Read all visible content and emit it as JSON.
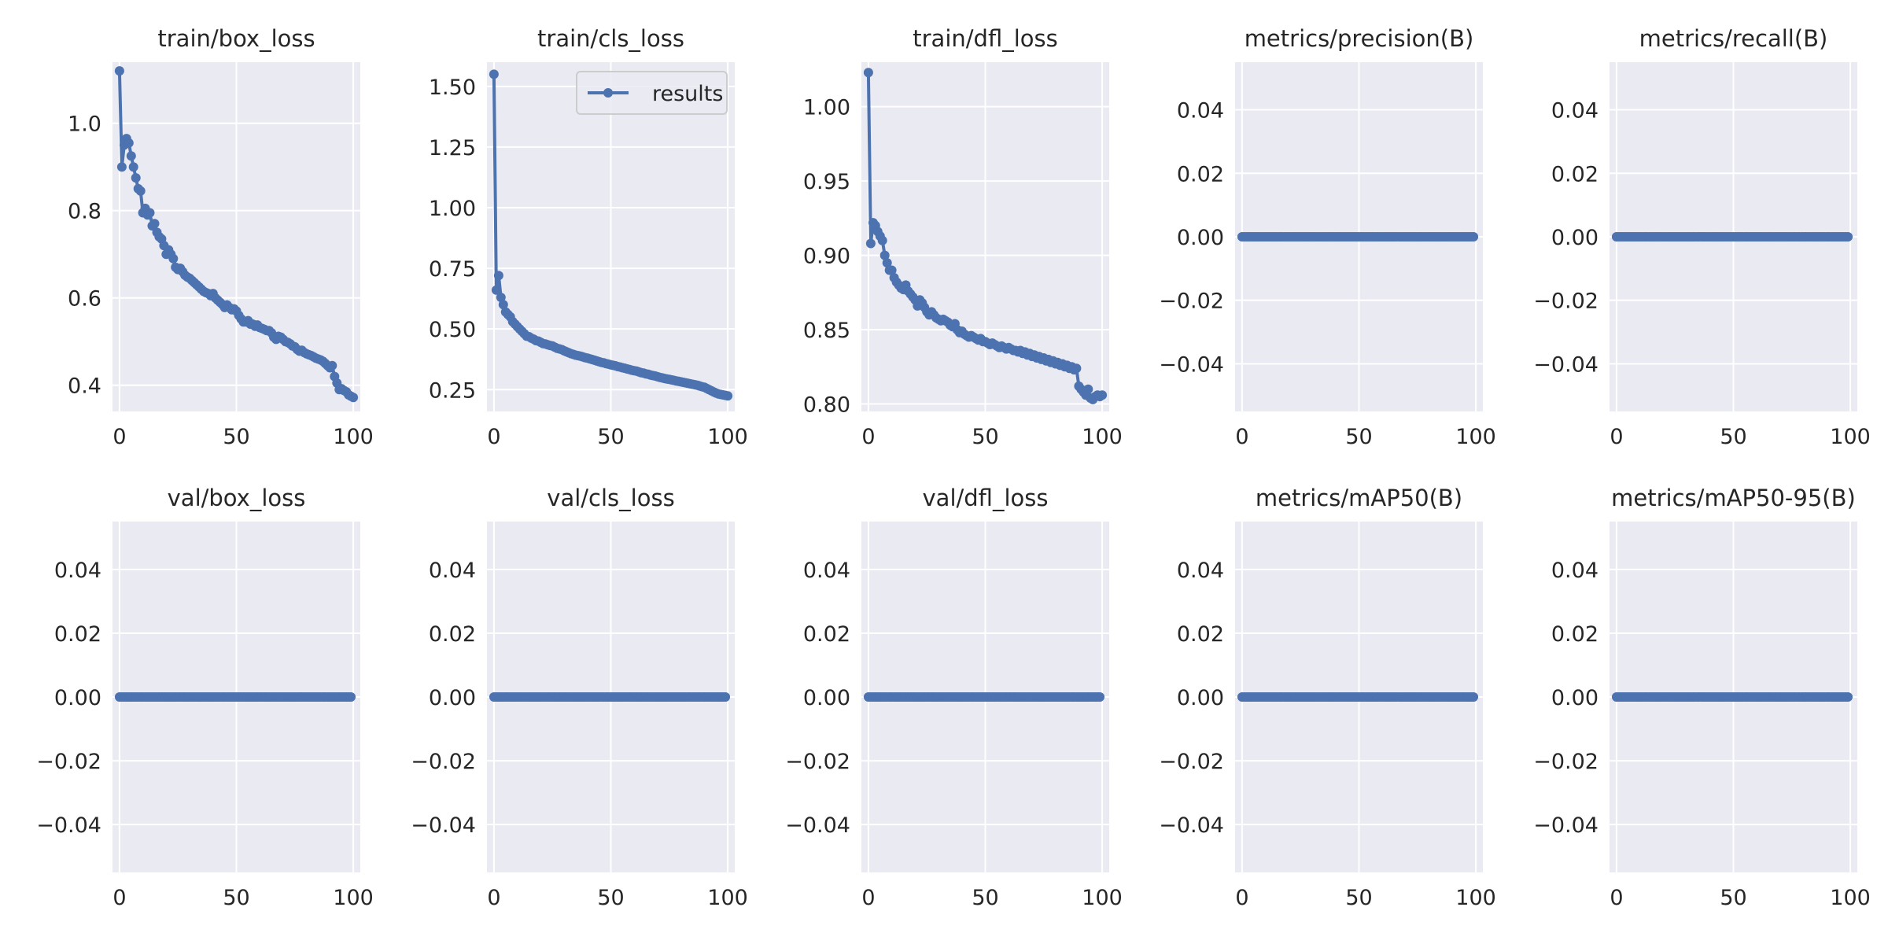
{
  "style": {
    "series_color": "#4c72b0",
    "panel_bg": "#eaeaf2",
    "grid_color": "#ffffff",
    "text_color": "#262626",
    "legend_border": "#cccccc"
  },
  "legend": {
    "label": "results",
    "panel_index": 1,
    "placement": "top-right"
  },
  "chart_data": [
    {
      "type": "line",
      "title": "train/box_loss",
      "xlim": [
        -3,
        103
      ],
      "ylim": [
        0.34,
        1.14
      ],
      "xticks": [
        0,
        50,
        100
      ],
      "yticks": [
        0.4,
        0.6,
        0.8,
        1.0
      ],
      "ytick_labels": [
        "0.4",
        "0.6",
        "0.8",
        "1.0"
      ],
      "series": [
        {
          "name": "results",
          "x_start": 0,
          "values": [
            1.12,
            0.9,
            0.95,
            0.965,
            0.955,
            0.925,
            0.9,
            0.875,
            0.85,
            0.845,
            0.795,
            0.805,
            0.79,
            0.795,
            0.765,
            0.77,
            0.75,
            0.74,
            0.735,
            0.72,
            0.7,
            0.71,
            0.7,
            0.69,
            0.67,
            0.665,
            0.668,
            0.66,
            0.652,
            0.648,
            0.645,
            0.64,
            0.635,
            0.63,
            0.625,
            0.62,
            0.615,
            0.612,
            0.61,
            0.605,
            0.61,
            0.6,
            0.595,
            0.59,
            0.585,
            0.578,
            0.584,
            0.578,
            0.573,
            0.575,
            0.57,
            0.56,
            0.552,
            0.545,
            0.545,
            0.548,
            0.54,
            0.54,
            0.535,
            0.538,
            0.532,
            0.53,
            0.528,
            0.525,
            0.525,
            0.52,
            0.51,
            0.505,
            0.512,
            0.51,
            0.505,
            0.5,
            0.498,
            0.495,
            0.49,
            0.488,
            0.482,
            0.478,
            0.48,
            0.475,
            0.472,
            0.47,
            0.468,
            0.465,
            0.462,
            0.46,
            0.458,
            0.455,
            0.45,
            0.445,
            0.44,
            0.445,
            0.42,
            0.405,
            0.39,
            0.392,
            0.388,
            0.385,
            0.378,
            0.375,
            0.372
          ]
        }
      ]
    },
    {
      "type": "line",
      "title": "train/cls_loss",
      "xlim": [
        -3,
        103
      ],
      "ylim": [
        0.16,
        1.6
      ],
      "xticks": [
        0,
        50,
        100
      ],
      "yticks": [
        0.25,
        0.5,
        0.75,
        1.0,
        1.25,
        1.5
      ],
      "ytick_labels": [
        "0.25",
        "0.50",
        "0.75",
        "1.00",
        "1.25",
        "1.50"
      ],
      "series": [
        {
          "name": "results",
          "x_start": 0,
          "values": [
            1.55,
            0.66,
            0.72,
            0.63,
            0.6,
            0.57,
            0.56,
            0.55,
            0.53,
            0.52,
            0.51,
            0.5,
            0.49,
            0.48,
            0.47,
            0.468,
            0.462,
            0.458,
            0.452,
            0.45,
            0.445,
            0.44,
            0.438,
            0.435,
            0.432,
            0.43,
            0.425,
            0.42,
            0.418,
            0.415,
            0.41,
            0.406,
            0.402,
            0.398,
            0.395,
            0.392,
            0.39,
            0.388,
            0.385,
            0.382,
            0.38,
            0.377,
            0.374,
            0.371,
            0.368,
            0.365,
            0.362,
            0.36,
            0.357,
            0.355,
            0.352,
            0.35,
            0.348,
            0.345,
            0.343,
            0.34,
            0.338,
            0.335,
            0.333,
            0.33,
            0.328,
            0.326,
            0.323,
            0.32,
            0.318,
            0.315,
            0.313,
            0.31,
            0.308,
            0.306,
            0.303,
            0.3,
            0.298,
            0.296,
            0.294,
            0.292,
            0.29,
            0.288,
            0.286,
            0.284,
            0.282,
            0.28,
            0.278,
            0.276,
            0.274,
            0.272,
            0.27,
            0.268,
            0.265,
            0.262,
            0.26,
            0.255,
            0.25,
            0.245,
            0.24,
            0.236,
            0.232,
            0.23,
            0.228,
            0.226,
            0.224
          ]
        }
      ]
    },
    {
      "type": "line",
      "title": "train/dfl_loss",
      "xlim": [
        -3,
        103
      ],
      "ylim": [
        0.795,
        1.03
      ],
      "xticks": [
        0,
        50,
        100
      ],
      "yticks": [
        0.8,
        0.85,
        0.9,
        0.95,
        1.0
      ],
      "ytick_labels": [
        "0.80",
        "0.85",
        "0.90",
        "0.95",
        "1.00"
      ],
      "series": [
        {
          "name": "results",
          "x_start": 0,
          "values": [
            1.023,
            0.908,
            0.922,
            0.92,
            0.916,
            0.913,
            0.91,
            0.9,
            0.895,
            0.89,
            0.89,
            0.885,
            0.882,
            0.88,
            0.878,
            0.877,
            0.88,
            0.876,
            0.874,
            0.872,
            0.87,
            0.866,
            0.87,
            0.868,
            0.865,
            0.862,
            0.86,
            0.862,
            0.86,
            0.858,
            0.857,
            0.856,
            0.857,
            0.856,
            0.855,
            0.853,
            0.852,
            0.854,
            0.85,
            0.848,
            0.849,
            0.847,
            0.846,
            0.845,
            0.846,
            0.845,
            0.844,
            0.843,
            0.844,
            0.842,
            0.842,
            0.841,
            0.84,
            0.841,
            0.84,
            0.839,
            0.838,
            0.839,
            0.838,
            0.837,
            0.838,
            0.837,
            0.836,
            0.836,
            0.835,
            0.836,
            0.834,
            0.835,
            0.833,
            0.834,
            0.832,
            0.833,
            0.831,
            0.832,
            0.83,
            0.831,
            0.829,
            0.83,
            0.828,
            0.829,
            0.827,
            0.828,
            0.826,
            0.827,
            0.825,
            0.826,
            0.824,
            0.825,
            0.823,
            0.824,
            0.812,
            0.81,
            0.808,
            0.806,
            0.81,
            0.804,
            0.803,
            0.805,
            0.806,
            0.805,
            0.806
          ]
        }
      ]
    },
    {
      "type": "line",
      "title": "metrics/precision(B)",
      "xlim": [
        -3,
        103
      ],
      "ylim": [
        -0.055,
        0.055
      ],
      "xticks": [
        0,
        50,
        100
      ],
      "yticks": [
        -0.04,
        -0.02,
        0.0,
        0.02,
        0.04
      ],
      "ytick_labels": [
        "−0.04",
        "−0.02",
        "0.00",
        "0.02",
        "0.04"
      ],
      "series": [
        {
          "name": "results",
          "x_start": 0,
          "constant": 0,
          "count": 100
        }
      ]
    },
    {
      "type": "line",
      "title": "metrics/recall(B)",
      "xlim": [
        -3,
        103
      ],
      "ylim": [
        -0.055,
        0.055
      ],
      "xticks": [
        0,
        50,
        100
      ],
      "yticks": [
        -0.04,
        -0.02,
        0.0,
        0.02,
        0.04
      ],
      "ytick_labels": [
        "−0.04",
        "−0.02",
        "0.00",
        "0.02",
        "0.04"
      ],
      "series": [
        {
          "name": "results",
          "x_start": 0,
          "constant": 0,
          "count": 100
        }
      ]
    },
    {
      "type": "line",
      "title": "val/box_loss",
      "xlim": [
        -3,
        103
      ],
      "ylim": [
        -0.055,
        0.055
      ],
      "xticks": [
        0,
        50,
        100
      ],
      "yticks": [
        -0.04,
        -0.02,
        0.0,
        0.02,
        0.04
      ],
      "ytick_labels": [
        "−0.04",
        "−0.02",
        "0.00",
        "0.02",
        "0.04"
      ],
      "series": [
        {
          "name": "results",
          "x_start": 0,
          "constant": 0,
          "count": 100
        }
      ]
    },
    {
      "type": "line",
      "title": "val/cls_loss",
      "xlim": [
        -3,
        103
      ],
      "ylim": [
        -0.055,
        0.055
      ],
      "xticks": [
        0,
        50,
        100
      ],
      "yticks": [
        -0.04,
        -0.02,
        0.0,
        0.02,
        0.04
      ],
      "ytick_labels": [
        "−0.04",
        "−0.02",
        "0.00",
        "0.02",
        "0.04"
      ],
      "series": [
        {
          "name": "results",
          "x_start": 0,
          "constant": 0,
          "count": 100
        }
      ]
    },
    {
      "type": "line",
      "title": "val/dfl_loss",
      "xlim": [
        -3,
        103
      ],
      "ylim": [
        -0.055,
        0.055
      ],
      "xticks": [
        0,
        50,
        100
      ],
      "yticks": [
        -0.04,
        -0.02,
        0.0,
        0.02,
        0.04
      ],
      "ytick_labels": [
        "−0.04",
        "−0.02",
        "0.00",
        "0.02",
        "0.04"
      ],
      "series": [
        {
          "name": "results",
          "x_start": 0,
          "constant": 0,
          "count": 100
        }
      ]
    },
    {
      "type": "line",
      "title": "metrics/mAP50(B)",
      "xlim": [
        -3,
        103
      ],
      "ylim": [
        -0.055,
        0.055
      ],
      "xticks": [
        0,
        50,
        100
      ],
      "yticks": [
        -0.04,
        -0.02,
        0.0,
        0.02,
        0.04
      ],
      "ytick_labels": [
        "−0.04",
        "−0.02",
        "0.00",
        "0.02",
        "0.04"
      ],
      "series": [
        {
          "name": "results",
          "x_start": 0,
          "constant": 0,
          "count": 100
        }
      ]
    },
    {
      "type": "line",
      "title": "metrics/mAP50-95(B)",
      "xlim": [
        -3,
        103
      ],
      "ylim": [
        -0.055,
        0.055
      ],
      "xticks": [
        0,
        50,
        100
      ],
      "yticks": [
        -0.04,
        -0.02,
        0.0,
        0.02,
        0.04
      ],
      "ytick_labels": [
        "−0.04",
        "−0.02",
        "0.00",
        "0.02",
        "0.04"
      ],
      "series": [
        {
          "name": "results",
          "x_start": 0,
          "constant": 0,
          "count": 100
        }
      ]
    }
  ]
}
